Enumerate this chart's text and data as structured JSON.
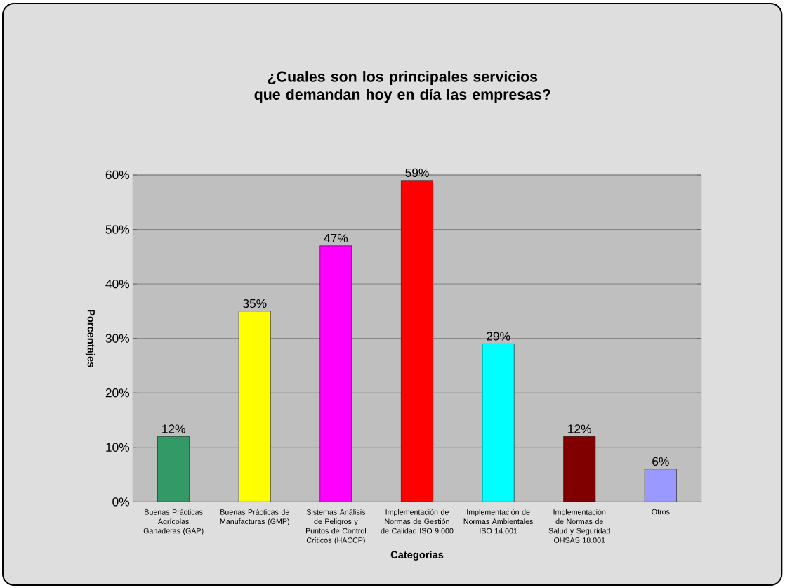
{
  "chart_data": {
    "type": "bar",
    "title": "¿Cuales son los principales servicios que demandan hoy en día las empresas?",
    "xlabel": "Categorías",
    "ylabel": "Porcentajes",
    "categories": [
      "Buenas Prácticas Agrícolas Ganaderas (GAP)",
      "Buenas Prácticas de Manufacturas (GMP)",
      "Sistemas Análisis de Peligros y Puntos de Control Críticos (HACCP)",
      "Implementación de Normas de Gestión de Calidad ISO 9.000",
      "Implementación de Normas Ambientales ISO 14.001",
      "Implementación de Normas de Salud y Seguridad OHSAS 18.001",
      "Otros"
    ],
    "values": [
      12,
      35,
      47,
      59,
      29,
      12,
      6
    ],
    "value_labels": [
      "12%",
      "35%",
      "47%",
      "59%",
      "29%",
      "12%",
      "6%"
    ],
    "colors": [
      "#339966",
      "#ffff00",
      "#ff00ff",
      "#ff0000",
      "#00ffff",
      "#800000",
      "#9999ff"
    ],
    "ylim": [
      0,
      60
    ],
    "yticks": [
      {
        "value": 0,
        "label": "0%"
      },
      {
        "value": 10,
        "label": "10%"
      },
      {
        "value": 20,
        "label": "20%"
      },
      {
        "value": 30,
        "label": "30%"
      },
      {
        "value": 40,
        "label": "40%"
      },
      {
        "value": 50,
        "label": "50%"
      },
      {
        "value": 60,
        "label": "60%"
      }
    ],
    "grid": "y"
  }
}
